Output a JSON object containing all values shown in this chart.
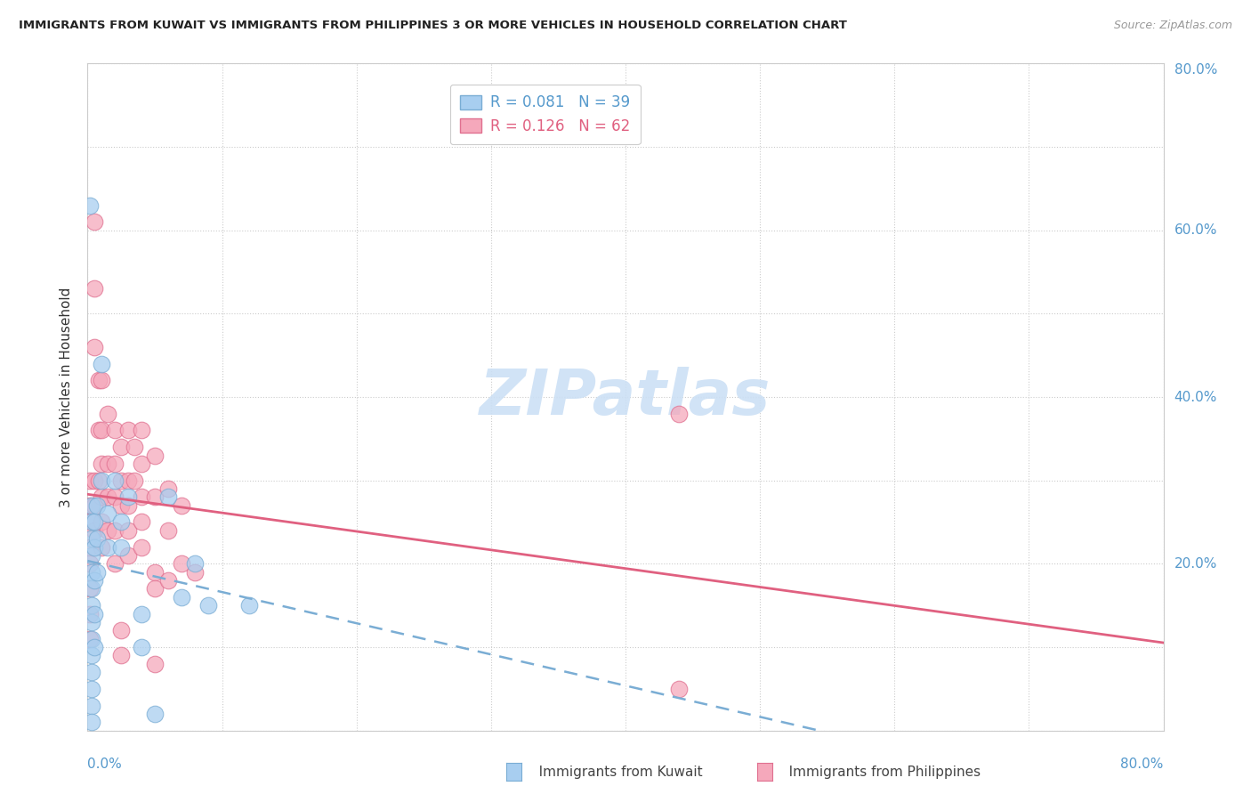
{
  "title": "IMMIGRANTS FROM KUWAIT VS IMMIGRANTS FROM PHILIPPINES 3 OR MORE VEHICLES IN HOUSEHOLD CORRELATION CHART",
  "source": "Source: ZipAtlas.com",
  "ylabel": "3 or more Vehicles in Household",
  "legend_kuwait_r": "R = 0.081",
  "legend_kuwait_n": "N = 39",
  "legend_philippines_r": "R = 0.126",
  "legend_philippines_n": "N = 62",
  "kuwait_color": "#a8cef0",
  "philippines_color": "#f5a8bb",
  "kuwait_edge_color": "#7aadd4",
  "philippines_edge_color": "#e07090",
  "kuwait_line_color": "#7aadd4",
  "philippines_line_color": "#e06080",
  "watermark_color": "#cce0f5",
  "xlim": [
    0.0,
    0.8
  ],
  "ylim": [
    0.0,
    0.8
  ],
  "kuwait_scatter": [
    [
      0.002,
      0.63
    ],
    [
      0.003,
      0.27
    ],
    [
      0.003,
      0.25
    ],
    [
      0.003,
      0.23
    ],
    [
      0.003,
      0.21
    ],
    [
      0.003,
      0.19
    ],
    [
      0.003,
      0.17
    ],
    [
      0.003,
      0.15
    ],
    [
      0.003,
      0.13
    ],
    [
      0.003,
      0.11
    ],
    [
      0.003,
      0.09
    ],
    [
      0.003,
      0.07
    ],
    [
      0.003,
      0.05
    ],
    [
      0.003,
      0.03
    ],
    [
      0.003,
      0.01
    ],
    [
      0.005,
      0.25
    ],
    [
      0.005,
      0.22
    ],
    [
      0.005,
      0.18
    ],
    [
      0.005,
      0.14
    ],
    [
      0.005,
      0.1
    ],
    [
      0.007,
      0.27
    ],
    [
      0.007,
      0.23
    ],
    [
      0.007,
      0.19
    ],
    [
      0.01,
      0.44
    ],
    [
      0.01,
      0.3
    ],
    [
      0.015,
      0.26
    ],
    [
      0.015,
      0.22
    ],
    [
      0.02,
      0.3
    ],
    [
      0.025,
      0.25
    ],
    [
      0.025,
      0.22
    ],
    [
      0.03,
      0.28
    ],
    [
      0.04,
      0.14
    ],
    [
      0.04,
      0.1
    ],
    [
      0.05,
      0.02
    ],
    [
      0.06,
      0.28
    ],
    [
      0.07,
      0.16
    ],
    [
      0.08,
      0.2
    ],
    [
      0.09,
      0.15
    ],
    [
      0.12,
      0.15
    ]
  ],
  "philippines_scatter": [
    [
      0.002,
      0.3
    ],
    [
      0.002,
      0.27
    ],
    [
      0.002,
      0.25
    ],
    [
      0.002,
      0.22
    ],
    [
      0.002,
      0.2
    ],
    [
      0.002,
      0.17
    ],
    [
      0.002,
      0.14
    ],
    [
      0.002,
      0.11
    ],
    [
      0.005,
      0.61
    ],
    [
      0.005,
      0.53
    ],
    [
      0.005,
      0.46
    ],
    [
      0.005,
      0.3
    ],
    [
      0.005,
      0.27
    ],
    [
      0.005,
      0.24
    ],
    [
      0.008,
      0.42
    ],
    [
      0.008,
      0.36
    ],
    [
      0.008,
      0.3
    ],
    [
      0.01,
      0.42
    ],
    [
      0.01,
      0.36
    ],
    [
      0.01,
      0.32
    ],
    [
      0.01,
      0.28
    ],
    [
      0.01,
      0.25
    ],
    [
      0.01,
      0.22
    ],
    [
      0.015,
      0.38
    ],
    [
      0.015,
      0.32
    ],
    [
      0.015,
      0.28
    ],
    [
      0.015,
      0.24
    ],
    [
      0.02,
      0.36
    ],
    [
      0.02,
      0.32
    ],
    [
      0.02,
      0.28
    ],
    [
      0.02,
      0.24
    ],
    [
      0.02,
      0.2
    ],
    [
      0.025,
      0.34
    ],
    [
      0.025,
      0.3
    ],
    [
      0.025,
      0.27
    ],
    [
      0.025,
      0.12
    ],
    [
      0.025,
      0.09
    ],
    [
      0.03,
      0.36
    ],
    [
      0.03,
      0.3
    ],
    [
      0.03,
      0.27
    ],
    [
      0.03,
      0.24
    ],
    [
      0.03,
      0.21
    ],
    [
      0.035,
      0.34
    ],
    [
      0.035,
      0.3
    ],
    [
      0.04,
      0.36
    ],
    [
      0.04,
      0.32
    ],
    [
      0.04,
      0.28
    ],
    [
      0.04,
      0.25
    ],
    [
      0.04,
      0.22
    ],
    [
      0.05,
      0.33
    ],
    [
      0.05,
      0.28
    ],
    [
      0.05,
      0.19
    ],
    [
      0.05,
      0.17
    ],
    [
      0.06,
      0.29
    ],
    [
      0.06,
      0.24
    ],
    [
      0.06,
      0.18
    ],
    [
      0.07,
      0.27
    ],
    [
      0.07,
      0.2
    ],
    [
      0.08,
      0.19
    ],
    [
      0.44,
      0.38
    ],
    [
      0.44,
      0.05
    ],
    [
      0.05,
      0.08
    ]
  ]
}
